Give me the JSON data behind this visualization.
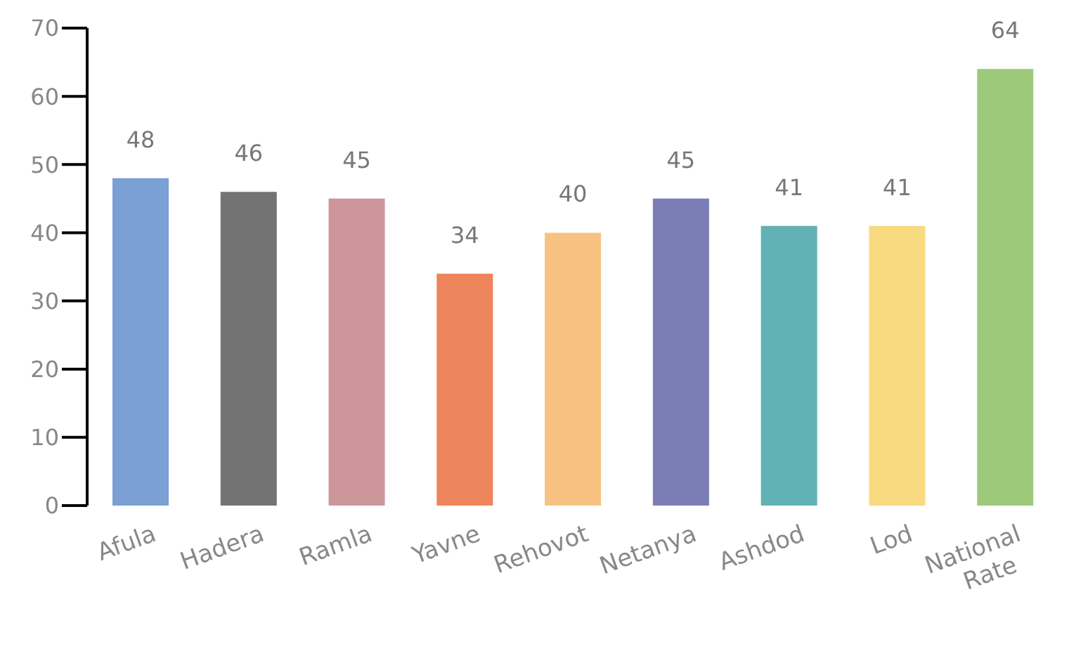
{
  "chart_data": {
    "type": "bar",
    "categories": [
      "Afula",
      "Hadera",
      "Ramla",
      "Yavne",
      "Rehovot",
      "Netanya",
      "Ashdod",
      "Lod",
      "National Rate"
    ],
    "values": [
      48,
      46,
      45,
      34,
      40,
      45,
      41,
      41,
      64
    ],
    "colors": [
      "#7aa0d4",
      "#737373",
      "#cc969a",
      "#ee845c",
      "#f7c281",
      "#7b7db5",
      "#62b1b5",
      "#f8da80",
      "#9dc97b"
    ],
    "ylim": [
      0,
      70
    ],
    "yticks": [
      0,
      10,
      20,
      30,
      40,
      50,
      60,
      70
    ],
    "data_labels": true,
    "grid": false,
    "legend": false
  }
}
